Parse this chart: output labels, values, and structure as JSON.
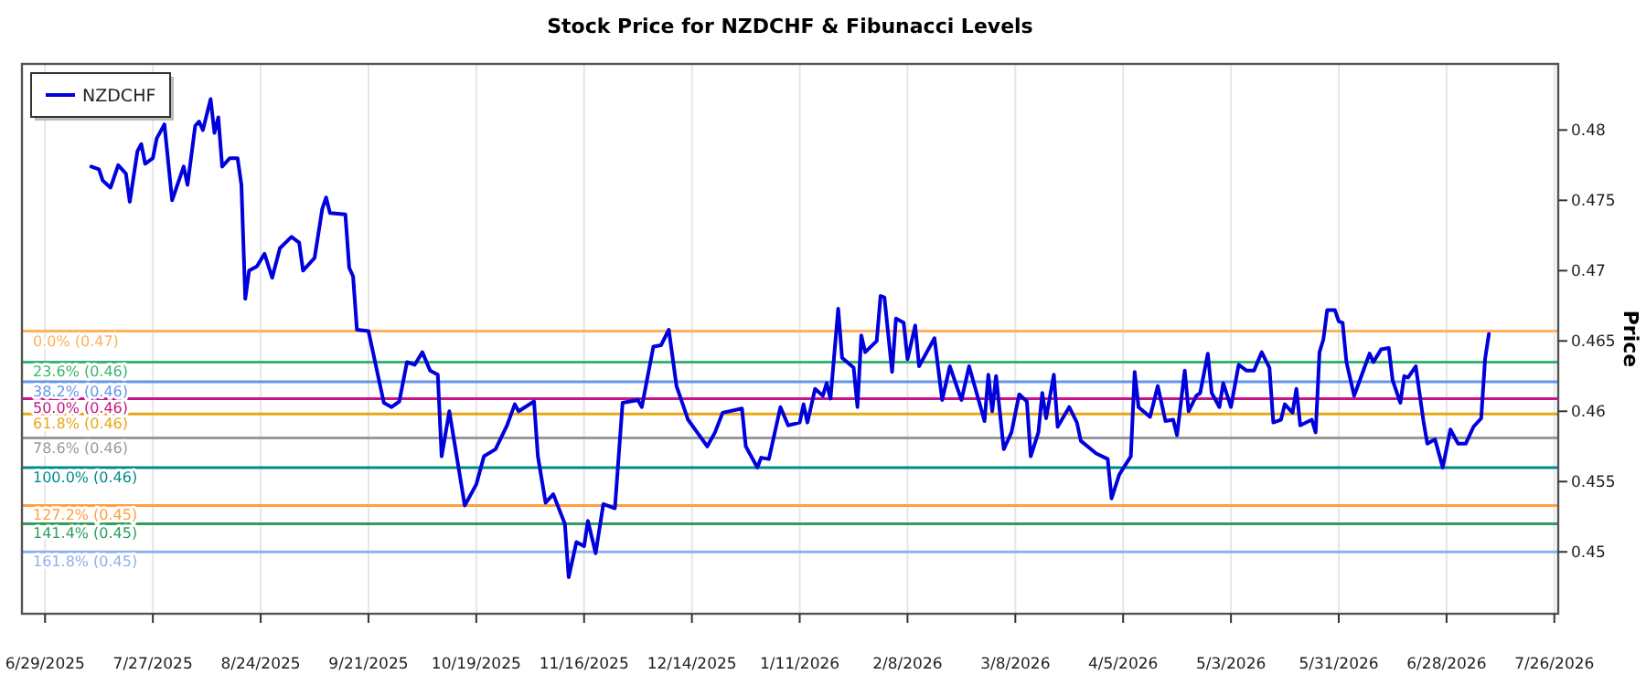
{
  "chart_data": {
    "type": "line",
    "title": "Stock Price for NZDCHF & Fibunacci Levels",
    "ylabel": "Price",
    "xlim": [
      "2025-06-23",
      "2026-07-27"
    ],
    "xticks": [
      {
        "value": "2025-06-29",
        "label": "6/29/2025"
      },
      {
        "value": "2025-07-27",
        "label": "7/27/2025"
      },
      {
        "value": "2025-08-24",
        "label": "8/24/2025"
      },
      {
        "value": "2025-09-21",
        "label": "9/21/2025"
      },
      {
        "value": "2025-10-19",
        "label": "10/19/2025"
      },
      {
        "value": "2025-11-16",
        "label": "11/16/2025"
      },
      {
        "value": "2025-12-14",
        "label": "12/14/2025"
      },
      {
        "value": "2026-01-11",
        "label": "1/11/2026"
      },
      {
        "value": "2026-02-08",
        "label": "2/8/2026"
      },
      {
        "value": "2026-03-08",
        "label": "3/8/2026"
      },
      {
        "value": "2026-04-05",
        "label": "4/5/2026"
      },
      {
        "value": "2026-05-03",
        "label": "5/3/2026"
      },
      {
        "value": "2026-05-31",
        "label": "5/31/2026"
      },
      {
        "value": "2026-06-28",
        "label": "6/28/2026"
      },
      {
        "value": "2026-07-26",
        "label": "7/26/2026"
      }
    ],
    "ylim": [
      0.4456,
      0.4847
    ],
    "yticks": [
      0.45,
      0.455,
      0.46,
      0.465,
      0.47,
      0.475,
      0.48
    ],
    "grid": "x",
    "legend": "top left",
    "line_style": "solid",
    "x": [
      "2025-07-11",
      "2025-07-13",
      "2025-07-14",
      "2025-07-16",
      "2025-07-18",
      "2025-07-20",
      "2025-07-21",
      "2025-07-23",
      "2025-07-24",
      "2025-07-25",
      "2025-07-27",
      "2025-07-28",
      "2025-07-30",
      "2025-08-01",
      "2025-08-04",
      "2025-08-05",
      "2025-08-07",
      "2025-08-08",
      "2025-08-09",
      "2025-08-11",
      "2025-08-12",
      "2025-08-13",
      "2025-08-14",
      "2025-08-16",
      "2025-08-18",
      "2025-08-19",
      "2025-08-20",
      "2025-08-21",
      "2025-08-23",
      "2025-08-25",
      "2025-08-27",
      "2025-08-29",
      "2025-09-01",
      "2025-09-03",
      "2025-09-04",
      "2025-09-07",
      "2025-09-09",
      "2025-09-10",
      "2025-09-11",
      "2025-09-15",
      "2025-09-16",
      "2025-09-17",
      "2025-09-18",
      "2025-09-21",
      "2025-09-25",
      "2025-09-27",
      "2025-09-29",
      "2025-10-01",
      "2025-10-03",
      "2025-10-05",
      "2025-10-07",
      "2025-10-09",
      "2025-10-10",
      "2025-10-12",
      "2025-10-16",
      "2025-10-19",
      "2025-10-21",
      "2025-10-24",
      "2025-10-27",
      "2025-10-29",
      "2025-10-30",
      "2025-11-03",
      "2025-11-04",
      "2025-11-06",
      "2025-11-08",
      "2025-11-11",
      "2025-11-12",
      "2025-11-14",
      "2025-11-16",
      "2025-11-17",
      "2025-11-19",
      "2025-11-21",
      "2025-11-24",
      "2025-11-26",
      "2025-11-30",
      "2025-12-01",
      "2025-12-04",
      "2025-12-06",
      "2025-12-08",
      "2025-12-10",
      "2025-12-13",
      "2025-12-18",
      "2025-12-20",
      "2025-12-22",
      "2025-12-27",
      "2025-12-28",
      "2025-12-31",
      "2026-01-01",
      "2026-01-03",
      "2026-01-06",
      "2026-01-08",
      "2026-01-11",
      "2026-01-12",
      "2026-01-13",
      "2026-01-15",
      "2026-01-17",
      "2026-01-18",
      "2026-01-19",
      "2026-01-21",
      "2026-01-22",
      "2026-01-25",
      "2026-01-26",
      "2026-01-27",
      "2026-01-28",
      "2026-01-31",
      "2026-02-01",
      "2026-02-02",
      "2026-02-04",
      "2026-02-05",
      "2026-02-07",
      "2026-02-08",
      "2026-02-10",
      "2026-02-11",
      "2026-02-15",
      "2026-02-17",
      "2026-02-19",
      "2026-02-22",
      "2026-02-24",
      "2026-02-28",
      "2026-03-01",
      "2026-03-02",
      "2026-03-03",
      "2026-03-05",
      "2026-03-07",
      "2026-03-09",
      "2026-03-11",
      "2026-03-12",
      "2026-03-14",
      "2026-03-15",
      "2026-03-16",
      "2026-03-18",
      "2026-03-19",
      "2026-03-22",
      "2026-03-24",
      "2026-03-25",
      "2026-03-29",
      "2026-04-01",
      "2026-04-02",
      "2026-04-04",
      "2026-04-07",
      "2026-04-08",
      "2026-04-09",
      "2026-04-12",
      "2026-04-14",
      "2026-04-16",
      "2026-04-18",
      "2026-04-19",
      "2026-04-21",
      "2026-04-22",
      "2026-04-24",
      "2026-04-25",
      "2026-04-27",
      "2026-04-28",
      "2026-04-30",
      "2026-05-01",
      "2026-05-03",
      "2026-05-05",
      "2026-05-07",
      "2026-05-09",
      "2026-05-11",
      "2026-05-13",
      "2026-05-14",
      "2026-05-16",
      "2026-05-17",
      "2026-05-19",
      "2026-05-20",
      "2026-05-21",
      "2026-05-24",
      "2026-05-25",
      "2026-05-26",
      "2026-05-27",
      "2026-05-28",
      "2026-05-30",
      "2026-05-31",
      "2026-06-01",
      "2026-06-02",
      "2026-06-04",
      "2026-06-06",
      "2026-06-08",
      "2026-06-09",
      "2026-06-11",
      "2026-06-13",
      "2026-06-14",
      "2026-06-16",
      "2026-06-17",
      "2026-06-18",
      "2026-06-20",
      "2026-06-22",
      "2026-06-23",
      "2026-06-25",
      "2026-06-27",
      "2026-06-29",
      "2026-07-01",
      "2026-07-03",
      "2026-07-05",
      "2026-07-07",
      "2026-07-08",
      "2026-07-09"
    ],
    "series": [
      {
        "name": "NZDCHF",
        "color": "#0000dd",
        "values": [
          0.4774,
          0.4772,
          0.4764,
          0.4759,
          0.4775,
          0.4769,
          0.4749,
          0.4785,
          0.479,
          0.4776,
          0.478,
          0.4794,
          0.4804,
          0.475,
          0.4774,
          0.4761,
          0.4803,
          0.4806,
          0.48,
          0.4822,
          0.4798,
          0.4809,
          0.4774,
          0.478,
          0.478,
          0.4761,
          0.468,
          0.47,
          0.4703,
          0.4712,
          0.4695,
          0.4716,
          0.4724,
          0.472,
          0.47,
          0.4709,
          0.4744,
          0.4752,
          0.4741,
          0.474,
          0.4702,
          0.4696,
          0.4658,
          0.4657,
          0.4606,
          0.4603,
          0.4607,
          0.4635,
          0.4633,
          0.4642,
          0.4629,
          0.4626,
          0.4568,
          0.46,
          0.4533,
          0.4548,
          0.4568,
          0.4573,
          0.459,
          0.4605,
          0.46,
          0.4607,
          0.4568,
          0.4535,
          0.4541,
          0.452,
          0.4482,
          0.4507,
          0.4504,
          0.4522,
          0.4499,
          0.4534,
          0.4531,
          0.4606,
          0.4608,
          0.4603,
          0.4646,
          0.4647,
          0.4658,
          0.4618,
          0.4594,
          0.4575,
          0.4585,
          0.4599,
          0.4602,
          0.4575,
          0.456,
          0.4567,
          0.4566,
          0.4603,
          0.459,
          0.4592,
          0.4605,
          0.4592,
          0.4616,
          0.4611,
          0.462,
          0.4609,
          0.4673,
          0.4638,
          0.4631,
          0.4603,
          0.4654,
          0.4642,
          0.465,
          0.4682,
          0.4681,
          0.4628,
          0.4666,
          0.4663,
          0.4637,
          0.4661,
          0.4632,
          0.4652,
          0.4608,
          0.4632,
          0.4608,
          0.4632,
          0.4593,
          0.4626,
          0.46,
          0.4625,
          0.4573,
          0.4585,
          0.4612,
          0.4607,
          0.4568,
          0.4585,
          0.4613,
          0.4595,
          0.4626,
          0.4589,
          0.4603,
          0.4592,
          0.4579,
          0.457,
          0.4566,
          0.4538,
          0.4555,
          0.4568,
          0.4628,
          0.4603,
          0.4596,
          0.4618,
          0.4593,
          0.4594,
          0.4583,
          0.4629,
          0.46,
          0.4611,
          0.4613,
          0.4641,
          0.4613,
          0.4603,
          0.462,
          0.4603,
          0.4633,
          0.4629,
          0.4629,
          0.4642,
          0.4631,
          0.4592,
          0.4594,
          0.4605,
          0.4599,
          0.4616,
          0.459,
          0.4594,
          0.4585,
          0.4642,
          0.4651,
          0.4672,
          0.4672,
          0.4664,
          0.4663,
          0.4635,
          0.4611,
          0.4626,
          0.4641,
          0.4635,
          0.4644,
          0.4645,
          0.4622,
          0.4606,
          0.4625,
          0.4624,
          0.4632,
          0.4593,
          0.4577,
          0.458,
          0.456,
          0.4587,
          0.4577,
          0.4577,
          0.4589,
          0.4595,
          0.4637,
          0.4655
        ]
      }
    ],
    "ref_lines": [
      {
        "axis": "y",
        "value": 0.4657,
        "label": "0.0% (0.47)",
        "color": "#ffb060"
      },
      {
        "axis": "y",
        "value": 0.4635,
        "label": "23.6% (0.46)",
        "color": "#3cb371"
      },
      {
        "axis": "y",
        "value": 0.4621,
        "label": "38.2% (0.46)",
        "color": "#6495ed"
      },
      {
        "axis": "y",
        "value": 0.4609,
        "label": "50.0% (0.46)",
        "color": "#c71585"
      },
      {
        "axis": "y",
        "value": 0.4598,
        "label": "61.8% (0.46)",
        "color": "#e6a817"
      },
      {
        "axis": "y",
        "value": 0.4581,
        "label": "78.6% (0.46)",
        "color": "#999999"
      },
      {
        "axis": "y",
        "value": 0.456,
        "label": "100.0% (0.46)",
        "color": "#008b8b"
      },
      {
        "axis": "y",
        "value": 0.4533,
        "label": "127.2% (0.45)",
        "color": "#ffa040"
      },
      {
        "axis": "y",
        "value": 0.452,
        "label": "141.4% (0.45)",
        "color": "#2e9e5e"
      },
      {
        "axis": "y",
        "value": 0.45,
        "label": "161.8% (0.45)",
        "color": "#8fb0ee"
      }
    ]
  }
}
